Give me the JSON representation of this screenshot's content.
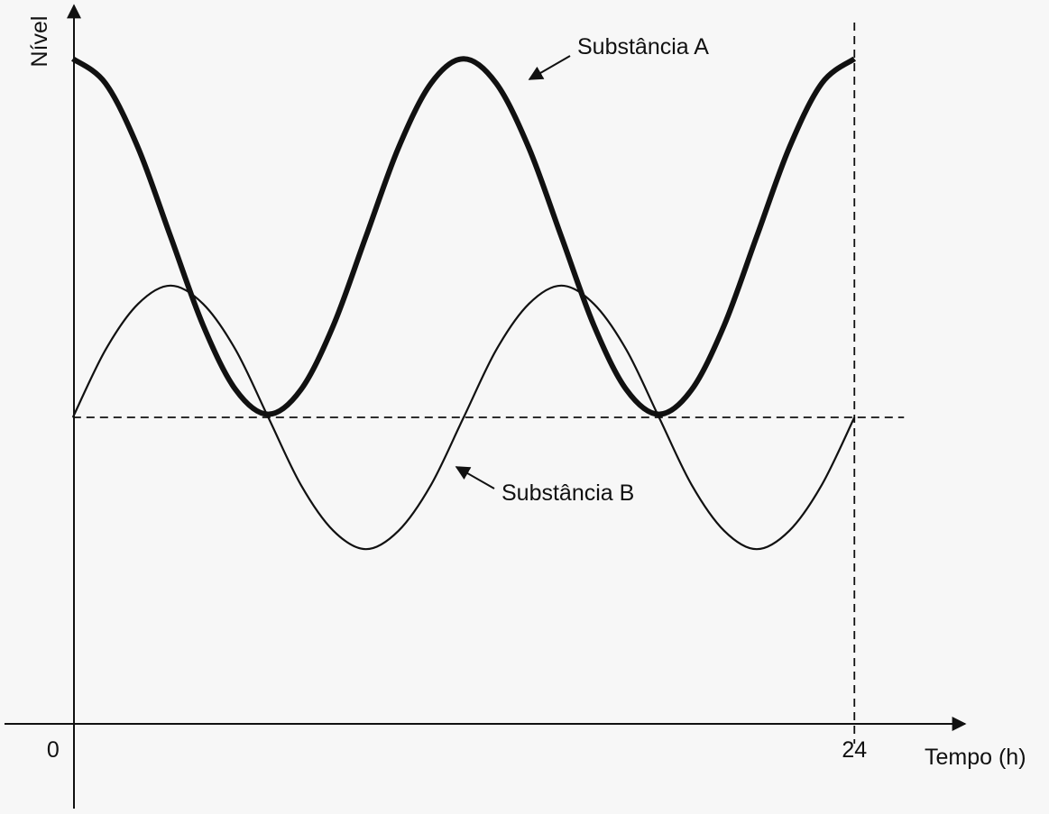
{
  "chart_data": {
    "type": "line",
    "ylabel": "Nível",
    "xlabel": "Tempo (h)",
    "x": [
      0,
      1,
      2,
      3,
      4,
      5,
      6,
      7,
      8,
      9,
      10,
      11,
      12,
      13,
      14,
      15,
      16,
      17,
      18,
      19,
      20,
      21,
      22,
      23,
      24
    ],
    "series": [
      {
        "name": "Substância A",
        "color": "#111111",
        "values": [
          21.7,
          20.9,
          18.8,
          15.9,
          13.0,
          10.9,
          10.1,
          10.9,
          13.0,
          15.9,
          18.8,
          20.9,
          21.7,
          20.9,
          18.8,
          15.9,
          13.0,
          10.9,
          10.1,
          10.9,
          13.0,
          15.9,
          18.8,
          20.9,
          21.7
        ]
      },
      {
        "name": "Substância B",
        "color": "#111111",
        "values": [
          10,
          12.2,
          13.7,
          14.3,
          13.7,
          12.2,
          10,
          7.8,
          6.3,
          5.7,
          6.3,
          7.8,
          10,
          12.2,
          13.7,
          14.3,
          13.7,
          12.2,
          10,
          7.8,
          6.3,
          5.7,
          6.3,
          7.8,
          10
        ]
      }
    ],
    "xlim": [
      -2.1,
      27.4
    ],
    "ylim": [
      0,
      23
    ],
    "xticks": [
      0,
      24
    ],
    "hlines": [
      10
    ],
    "vlines": [
      24
    ]
  }
}
